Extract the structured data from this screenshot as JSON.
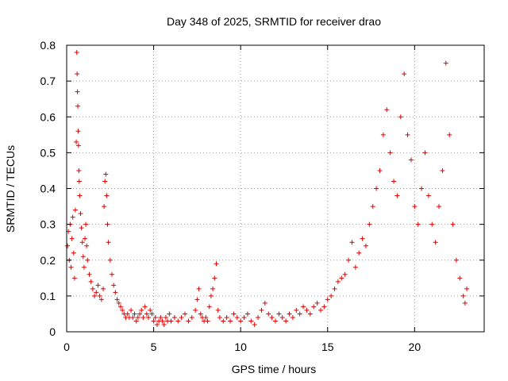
{
  "chart_data": {
    "type": "scatter",
    "title": "Day 348 of 2025, SRMTID for receiver drao",
    "xlabel": "GPS time / hours",
    "ylabel": "SRMTID / TECUs",
    "xlim": [
      0,
      24
    ],
    "ylim": [
      0,
      0.8
    ],
    "xticks": [
      0,
      5,
      10,
      15,
      20
    ],
    "yticks": [
      0,
      0.1,
      0.2,
      0.3,
      0.4,
      0.5,
      0.6,
      0.7,
      0.8
    ],
    "grid": true,
    "marker": "+",
    "color": "#e00000",
    "series": [
      {
        "name": "SRMTID",
        "points": [
          [
            0.05,
            0.24
          ],
          [
            0.1,
            0.28
          ],
          [
            0.15,
            0.2
          ],
          [
            0.2,
            0.3
          ],
          [
            0.25,
            0.18
          ],
          [
            0.3,
            0.26
          ],
          [
            0.35,
            0.32
          ],
          [
            0.4,
            0.22
          ],
          [
            0.45,
            0.15
          ],
          [
            0.5,
            0.34
          ],
          [
            0.55,
            0.53
          ],
          [
            0.58,
            0.78
          ],
          [
            0.6,
            0.72
          ],
          [
            0.62,
            0.67
          ],
          [
            0.64,
            0.63
          ],
          [
            0.66,
            0.56
          ],
          [
            0.68,
            0.52
          ],
          [
            0.7,
            0.45
          ],
          [
            0.72,
            0.42
          ],
          [
            0.75,
            0.38
          ],
          [
            0.8,
            0.33
          ],
          [
            0.85,
            0.29
          ],
          [
            0.9,
            0.25
          ],
          [
            0.95,
            0.21
          ],
          [
            1.0,
            0.18
          ],
          [
            1.05,
            0.26
          ],
          [
            1.1,
            0.3
          ],
          [
            1.15,
            0.24
          ],
          [
            1.2,
            0.2
          ],
          [
            1.3,
            0.16
          ],
          [
            1.4,
            0.14
          ],
          [
            1.5,
            0.12
          ],
          [
            1.6,
            0.1
          ],
          [
            1.7,
            0.11
          ],
          [
            1.8,
            0.13
          ],
          [
            1.9,
            0.1
          ],
          [
            2.0,
            0.09
          ],
          [
            2.1,
            0.12
          ],
          [
            2.15,
            0.35
          ],
          [
            2.2,
            0.42
          ],
          [
            2.25,
            0.44
          ],
          [
            2.3,
            0.38
          ],
          [
            2.35,
            0.3
          ],
          [
            2.4,
            0.25
          ],
          [
            2.5,
            0.2
          ],
          [
            2.6,
            0.16
          ],
          [
            2.7,
            0.13
          ],
          [
            2.8,
            0.11
          ],
          [
            2.9,
            0.09
          ],
          [
            3.0,
            0.08
          ],
          [
            3.1,
            0.07
          ],
          [
            3.2,
            0.06
          ],
          [
            3.3,
            0.05
          ],
          [
            3.4,
            0.04
          ],
          [
            3.5,
            0.05
          ],
          [
            3.6,
            0.04
          ],
          [
            3.7,
            0.06
          ],
          [
            3.8,
            0.04
          ],
          [
            3.9,
            0.05
          ],
          [
            4.0,
            0.03
          ],
          [
            4.1,
            0.04
          ],
          [
            4.2,
            0.05
          ],
          [
            4.3,
            0.06
          ],
          [
            4.4,
            0.04
          ],
          [
            4.5,
            0.07
          ],
          [
            4.6,
            0.05
          ],
          [
            4.7,
            0.04
          ],
          [
            4.8,
            0.06
          ],
          [
            4.9,
            0.05
          ],
          [
            5.0,
            0.03
          ],
          [
            5.1,
            0.04
          ],
          [
            5.2,
            0.02
          ],
          [
            5.3,
            0.03
          ],
          [
            5.4,
            0.04
          ],
          [
            5.5,
            0.03
          ],
          [
            5.6,
            0.02
          ],
          [
            5.7,
            0.04
          ],
          [
            5.8,
            0.03
          ],
          [
            5.9,
            0.05
          ],
          [
            6.0,
            0.03
          ],
          [
            6.2,
            0.04
          ],
          [
            6.4,
            0.03
          ],
          [
            6.6,
            0.04
          ],
          [
            6.8,
            0.05
          ],
          [
            7.0,
            0.03
          ],
          [
            7.2,
            0.04
          ],
          [
            7.4,
            0.06
          ],
          [
            7.5,
            0.09
          ],
          [
            7.6,
            0.12
          ],
          [
            7.7,
            0.05
          ],
          [
            7.8,
            0.04
          ],
          [
            7.9,
            0.03
          ],
          [
            8.0,
            0.04
          ],
          [
            8.1,
            0.03
          ],
          [
            8.2,
            0.07
          ],
          [
            8.3,
            0.1
          ],
          [
            8.4,
            0.12
          ],
          [
            8.5,
            0.15
          ],
          [
            8.6,
            0.19
          ],
          [
            8.7,
            0.06
          ],
          [
            8.8,
            0.04
          ],
          [
            9.0,
            0.03
          ],
          [
            9.2,
            0.04
          ],
          [
            9.4,
            0.03
          ],
          [
            9.6,
            0.05
          ],
          [
            9.8,
            0.04
          ],
          [
            10.0,
            0.03
          ],
          [
            10.2,
            0.04
          ],
          [
            10.4,
            0.05
          ],
          [
            10.6,
            0.03
          ],
          [
            10.8,
            0.02
          ],
          [
            11.0,
            0.04
          ],
          [
            11.2,
            0.06
          ],
          [
            11.4,
            0.08
          ],
          [
            11.6,
            0.05
          ],
          [
            11.8,
            0.04
          ],
          [
            12.0,
            0.03
          ],
          [
            12.2,
            0.05
          ],
          [
            12.4,
            0.04
          ],
          [
            12.6,
            0.03
          ],
          [
            12.8,
            0.05
          ],
          [
            13.0,
            0.04
          ],
          [
            13.2,
            0.06
          ],
          [
            13.4,
            0.05
          ],
          [
            13.6,
            0.07
          ],
          [
            13.8,
            0.06
          ],
          [
            14.0,
            0.05
          ],
          [
            14.2,
            0.07
          ],
          [
            14.4,
            0.08
          ],
          [
            14.6,
            0.06
          ],
          [
            14.8,
            0.07
          ],
          [
            15.0,
            0.09
          ],
          [
            15.2,
            0.1
          ],
          [
            15.4,
            0.12
          ],
          [
            15.6,
            0.14
          ],
          [
            15.8,
            0.15
          ],
          [
            16.0,
            0.16
          ],
          [
            16.2,
            0.2
          ],
          [
            16.4,
            0.25
          ],
          [
            16.6,
            0.18
          ],
          [
            16.8,
            0.22
          ],
          [
            17.0,
            0.26
          ],
          [
            17.2,
            0.24
          ],
          [
            17.4,
            0.3
          ],
          [
            17.6,
            0.35
          ],
          [
            17.8,
            0.4
          ],
          [
            18.0,
            0.45
          ],
          [
            18.2,
            0.55
          ],
          [
            18.4,
            0.62
          ],
          [
            18.6,
            0.5
          ],
          [
            18.8,
            0.42
          ],
          [
            19.0,
            0.38
          ],
          [
            19.2,
            0.6
          ],
          [
            19.4,
            0.72
          ],
          [
            19.6,
            0.55
          ],
          [
            19.8,
            0.48
          ],
          [
            20.0,
            0.35
          ],
          [
            20.2,
            0.3
          ],
          [
            20.4,
            0.4
          ],
          [
            20.6,
            0.5
          ],
          [
            20.8,
            0.38
          ],
          [
            21.0,
            0.3
          ],
          [
            21.2,
            0.25
          ],
          [
            21.4,
            0.35
          ],
          [
            21.6,
            0.45
          ],
          [
            21.8,
            0.75
          ],
          [
            22.0,
            0.55
          ],
          [
            22.2,
            0.3
          ],
          [
            22.4,
            0.2
          ],
          [
            22.6,
            0.15
          ],
          [
            22.8,
            0.1
          ],
          [
            22.9,
            0.08
          ],
          [
            23.0,
            0.12
          ]
        ]
      }
    ]
  }
}
